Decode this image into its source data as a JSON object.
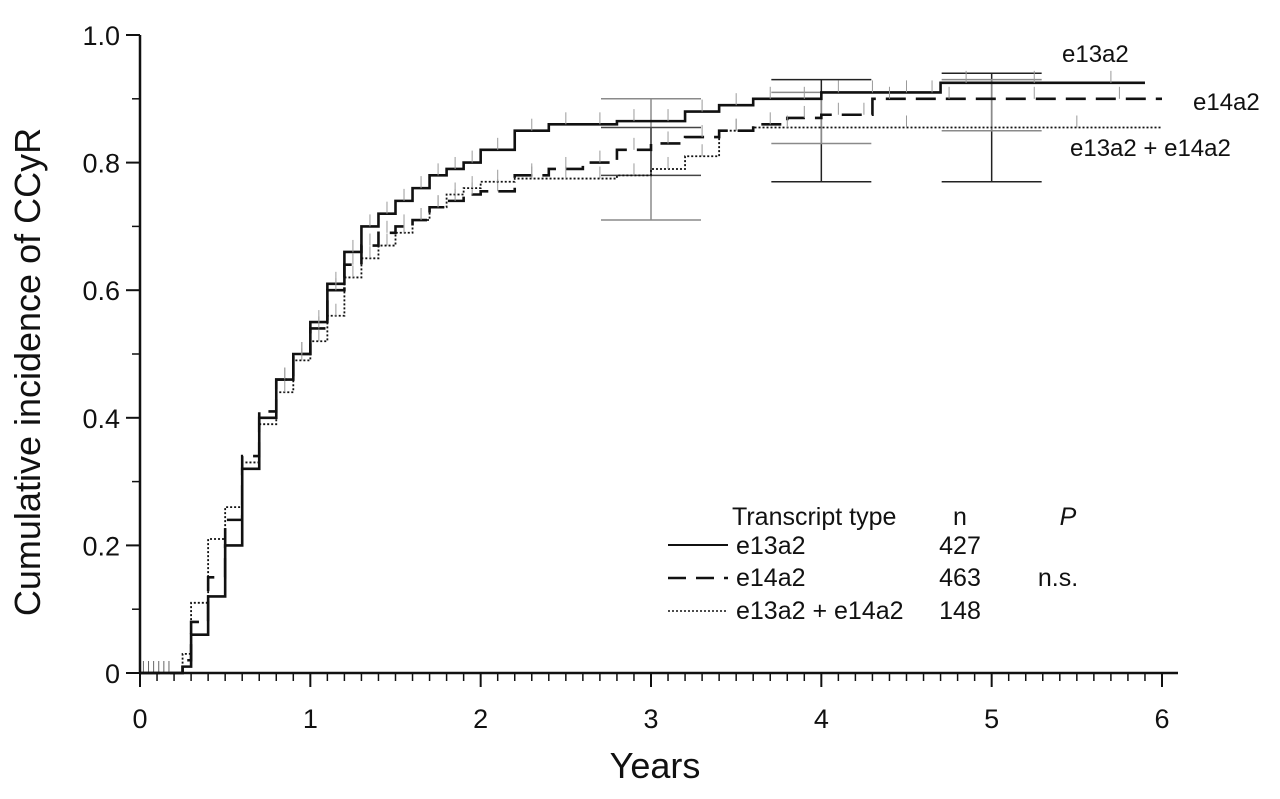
{
  "chart_data": {
    "type": "line",
    "subtype": "cumulative-incidence step curves with censoring ticks and 95% CI error bars",
    "title": "",
    "xlabel": "Years",
    "ylabel": "Cumulative incidence of CCyR",
    "xlim": [
      0,
      6
    ],
    "ylim": [
      0,
      1.0
    ],
    "x_ticks": [
      "0",
      "1",
      "2",
      "3",
      "4",
      "5",
      "6"
    ],
    "y_ticks": [
      "0",
      "0.2",
      "0.4",
      "0.6",
      "0.8",
      "1.0"
    ],
    "grid": false,
    "series": [
      {
        "name": "e13a2",
        "style": "solid",
        "color": "#111111",
        "x": [
          0.22,
          0.25,
          0.3,
          0.4,
          0.5,
          0.6,
          0.7,
          0.8,
          0.9,
          1.0,
          1.1,
          1.2,
          1.3,
          1.4,
          1.5,
          1.6,
          1.7,
          1.8,
          1.9,
          2.0,
          2.2,
          2.4,
          2.6,
          2.8,
          3.0,
          3.2,
          3.4,
          3.6,
          3.8,
          4.0,
          4.2,
          4.4,
          4.6,
          4.7,
          5.0,
          5.5,
          5.9
        ],
        "y": [
          0,
          0.01,
          0.06,
          0.12,
          0.2,
          0.32,
          0.4,
          0.46,
          0.5,
          0.55,
          0.61,
          0.66,
          0.7,
          0.72,
          0.74,
          0.76,
          0.78,
          0.79,
          0.8,
          0.82,
          0.85,
          0.86,
          0.86,
          0.865,
          0.865,
          0.88,
          0.89,
          0.9,
          0.9,
          0.91,
          0.91,
          0.91,
          0.91,
          0.925,
          0.925,
          0.925,
          0.925
        ]
      },
      {
        "name": "e14a2",
        "style": "dashed",
        "color": "#111111",
        "x": [
          0.22,
          0.25,
          0.3,
          0.4,
          0.5,
          0.6,
          0.7,
          0.8,
          0.9,
          1.0,
          1.1,
          1.2,
          1.3,
          1.4,
          1.5,
          1.6,
          1.7,
          1.8,
          1.9,
          2.0,
          2.2,
          2.4,
          2.6,
          2.8,
          3.0,
          3.2,
          3.4,
          3.6,
          3.8,
          4.0,
          4.2,
          4.3,
          4.5,
          5.0,
          5.5,
          6.0
        ],
        "y": [
          0,
          0.02,
          0.08,
          0.15,
          0.24,
          0.34,
          0.41,
          0.46,
          0.5,
          0.54,
          0.6,
          0.64,
          0.67,
          0.69,
          0.7,
          0.71,
          0.73,
          0.74,
          0.75,
          0.755,
          0.78,
          0.79,
          0.8,
          0.82,
          0.83,
          0.84,
          0.85,
          0.86,
          0.87,
          0.875,
          0.875,
          0.9,
          0.9,
          0.9,
          0.9,
          0.9
        ]
      },
      {
        "name": "e13a2 + e14a2",
        "style": "dotted",
        "color": "#111111",
        "x": [
          0.22,
          0.25,
          0.3,
          0.4,
          0.5,
          0.6,
          0.7,
          0.8,
          0.9,
          1.0,
          1.1,
          1.2,
          1.3,
          1.4,
          1.5,
          1.6,
          1.7,
          1.8,
          1.9,
          2.0,
          2.2,
          2.4,
          2.6,
          2.8,
          3.0,
          3.2,
          3.4,
          3.6,
          4.0,
          5.0,
          6.0
        ],
        "y": [
          0,
          0.03,
          0.11,
          0.21,
          0.26,
          0.33,
          0.39,
          0.44,
          0.49,
          0.52,
          0.56,
          0.62,
          0.65,
          0.67,
          0.69,
          0.71,
          0.73,
          0.75,
          0.76,
          0.77,
          0.775,
          0.775,
          0.775,
          0.78,
          0.79,
          0.81,
          0.85,
          0.855,
          0.855,
          0.855,
          0.855
        ]
      }
    ],
    "error_bars": [
      {
        "x": 3,
        "lower": 0.71,
        "upper": 0.9,
        "color": "#8a8a8a"
      },
      {
        "x": 3,
        "lower": 0.78,
        "upper": 0.855,
        "color": "#444444"
      },
      {
        "x": 4,
        "lower": 0.77,
        "upper": 0.93,
        "color": "#222222"
      },
      {
        "x": 4,
        "lower": 0.83,
        "upper": 0.91,
        "color": "#8a8a8a"
      },
      {
        "x": 5,
        "lower": 0.77,
        "upper": 0.94,
        "color": "#222222"
      },
      {
        "x": 5,
        "lower": 0.85,
        "upper": 0.93,
        "color": "#8a8a8a"
      }
    ],
    "series_labels": [
      "e13a2",
      "e14a2",
      "e13a2 + e14a2"
    ],
    "legend": {
      "position": "bottom-right",
      "headers": {
        "type": "Transcript type",
        "n": "n",
        "p": "P"
      },
      "rows": [
        {
          "label": "e13a2",
          "n": "427",
          "p": "",
          "style": "solid"
        },
        {
          "label": "e14a2",
          "n": "463",
          "p": "n.s.",
          "style": "dashed"
        },
        {
          "label": "e13a2 + e14a2",
          "n": "148",
          "p": "",
          "style": "dotted"
        }
      ]
    }
  }
}
